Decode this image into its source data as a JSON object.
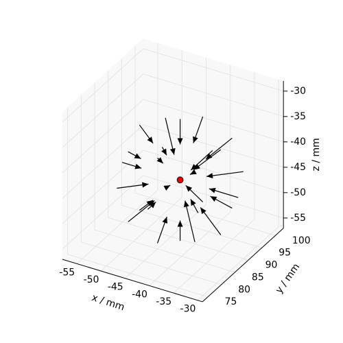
{
  "chart_data": {
    "type": "quiver3d",
    "xlabel": "x / mm",
    "ylabel": "y / mm",
    "zlabel": "z / mm",
    "xlim": [
      -58,
      -29
    ],
    "ylim": [
      73,
      103
    ],
    "zlim": [
      -57,
      -28
    ],
    "xticks": [
      -55,
      -50,
      -45,
      -40,
      -35,
      -30
    ],
    "yticks": [
      75,
      80,
      85,
      90,
      95,
      100
    ],
    "zticks": [
      -55,
      -50,
      -45,
      -40,
      -35,
      -30
    ],
    "grid": true,
    "elev": 30,
    "azim": -60,
    "color": "#000000",
    "center": {
      "x": -42,
      "y": 88,
      "z": -44,
      "color": "#e00000"
    },
    "x": [
      -30,
      -54,
      -42,
      -42,
      -42,
      -42,
      -33.6,
      -33.6,
      -50.4,
      -50.4,
      -33.6,
      -50.4,
      -42,
      -42,
      -33.6,
      -50.4,
      -42,
      -42,
      -35.1,
      -35.1,
      -48.9,
      -48.9,
      -35.1,
      -35.1,
      -48.9,
      -48.9
    ],
    "y": [
      88,
      88,
      100,
      76,
      88,
      88,
      96.4,
      79.6,
      96.4,
      79.6,
      88,
      88,
      96.4,
      79.6,
      88,
      88,
      96.4,
      79.6,
      94.9,
      81.1,
      94.9,
      81.1,
      94.9,
      81.1,
      94.9,
      81.1
    ],
    "z": [
      -44,
      -44,
      -44,
      -44,
      -32,
      -56,
      -44,
      -44,
      -44,
      -44,
      -35.6,
      -35.6,
      -35.6,
      -35.6,
      -52.4,
      -52.4,
      -52.4,
      -52.4,
      -37.1,
      -37.1,
      -37.1,
      -37.1,
      -50.9,
      -50.9,
      -50.9,
      -50.9
    ],
    "u": [
      -6,
      4,
      0,
      0,
      0,
      0,
      -4.9,
      -3.5,
      2.1,
      4.2,
      -5.6,
      2.8,
      0,
      0,
      -4.2,
      2.8,
      0,
      0,
      -3.5,
      -2.3,
      4.1,
      1.7,
      -2.9,
      -4.6,
      2.3,
      3.5
    ],
    "v": [
      0,
      0,
      -8,
      3,
      0,
      0,
      -4.9,
      3.5,
      -2.1,
      4.2,
      0,
      0,
      -3.5,
      2.1,
      0,
      0,
      -6.3,
      3.5,
      -3.5,
      2.3,
      -4.1,
      1.7,
      -2.9,
      4.6,
      -2.3,
      3.5
    ],
    "w": [
      0,
      0,
      0,
      0,
      -5,
      4,
      0,
      0,
      0,
      0,
      -5.6,
      -2.8,
      -3.5,
      -2.1,
      4.2,
      2.8,
      6.3,
      3.5,
      -3.5,
      -2.3,
      -4.1,
      -1.7,
      2.9,
      4.6,
      2.3,
      3.5
    ]
  }
}
